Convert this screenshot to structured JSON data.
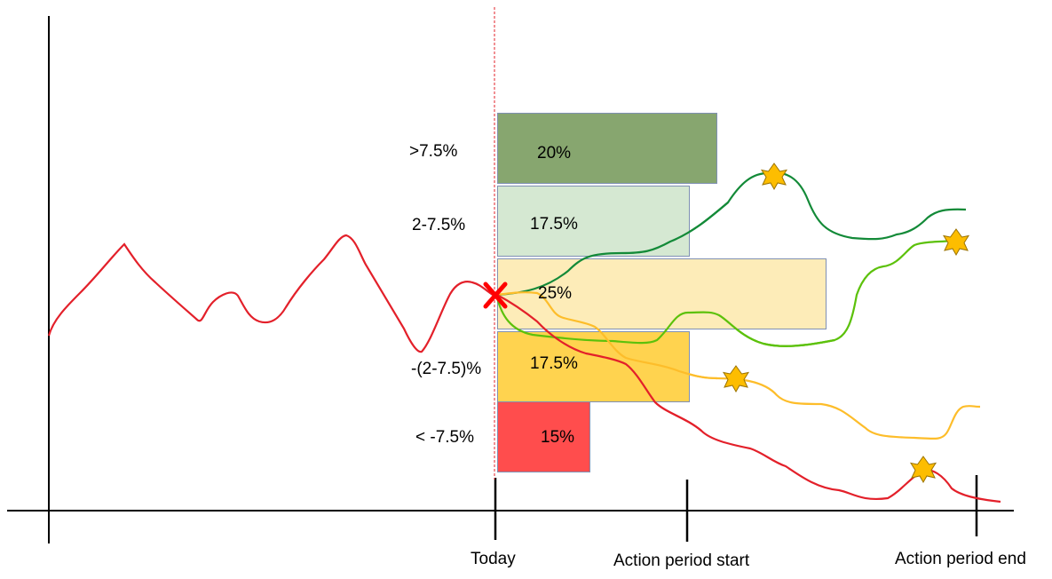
{
  "axis_labels": {
    "today": "Today",
    "action_start": "Action period start",
    "action_end": "Action period end"
  },
  "buckets": [
    {
      "range": ">7.5%",
      "probability": "20%",
      "color": "#87a66f"
    },
    {
      "range": "2-7.5%",
      "probability": "17.5%",
      "color": "#d5e8d2"
    },
    {
      "range": "",
      "probability": "25%",
      "color": "#fdecb8"
    },
    {
      "range": "-(2-7.5)%",
      "probability": "17.5%",
      "color": "#ffd34f"
    },
    {
      "range": "< -7.5%",
      "probability": "15%",
      "color": "#ff4d4d"
    }
  ],
  "colors": {
    "history": "#e3202a",
    "path_dark_green": "#138a38",
    "path_light_green": "#5cc10b",
    "path_yellow": "#fdbd2a",
    "path_red": "#e3202a",
    "today_marker": "#ff0000",
    "star": "#fdbd00"
  }
}
